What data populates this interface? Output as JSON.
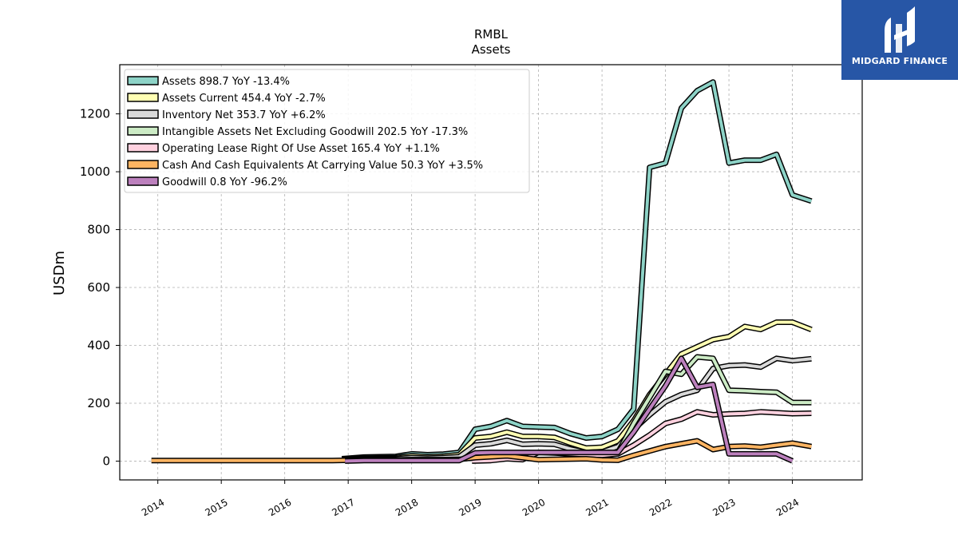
{
  "brand": {
    "name": "MIDGARD FINANCE",
    "bg_color": "#2756a6"
  },
  "chart_data": {
    "type": "line",
    "title": "RMBL",
    "subtitle": "Assets",
    "ylabel": "USDm",
    "xlabel": "",
    "xlim": [
      2013.4,
      2025.1
    ],
    "ylim": [
      -65,
      1370
    ],
    "x_ticks": [
      2014,
      2015,
      2016,
      2017,
      2018,
      2019,
      2020,
      2021,
      2022,
      2023,
      2024
    ],
    "y_ticks": [
      0,
      200,
      400,
      600,
      800,
      1000,
      1200
    ],
    "grid": true,
    "legend_position": "top-left",
    "series": [
      {
        "name": "Assets  898.7 YoY -13.4%",
        "color": "#8dd3c7",
        "x": [
          2016.9,
          2017.25,
          2017.5,
          2017.75,
          2018.0,
          2018.25,
          2018.5,
          2018.75,
          2019.0,
          2019.25,
          2019.5,
          2019.75,
          2020.0,
          2020.25,
          2020.5,
          2020.75,
          2021.0,
          2021.25,
          2021.5,
          2021.75,
          2022.0,
          2022.25,
          2022.5,
          2022.75,
          2023.0,
          2023.25,
          2023.5,
          2023.75,
          2024.0,
          2024.3
        ],
        "y": [
          8,
          14,
          15,
          16,
          25,
          22,
          24,
          30,
          110,
          120,
          140,
          120,
          118,
          116,
          95,
          80,
          85,
          110,
          180,
          1015,
          1030,
          1220,
          1280,
          1310,
          1030,
          1040,
          1040,
          1060,
          920,
          898.7
        ]
      },
      {
        "name": "Assets Current  454.4 YoY -2.7%",
        "color": "#ffffb3",
        "x": [
          2016.9,
          2017.25,
          2017.5,
          2017.75,
          2018.0,
          2018.25,
          2018.5,
          2018.75,
          2019.0,
          2019.25,
          2019.5,
          2019.75,
          2020.0,
          2020.25,
          2020.5,
          2020.75,
          2021.0,
          2021.25,
          2021.5,
          2021.75,
          2022.0,
          2022.25,
          2022.5,
          2022.75,
          2023.0,
          2023.25,
          2023.5,
          2023.75,
          2024.0,
          2024.3
        ],
        "y": [
          6,
          10,
          11,
          12,
          18,
          15,
          17,
          22,
          80,
          85,
          100,
          85,
          85,
          82,
          62,
          45,
          48,
          70,
          140,
          230,
          300,
          370,
          395,
          420,
          430,
          465,
          455,
          480,
          480,
          454.4
        ]
      },
      {
        "name": "Inventory Net  353.7 YoY +6.2%",
        "color": "#d9d9d9",
        "x": [
          2016.9,
          2017.25,
          2017.5,
          2017.75,
          2018.0,
          2018.25,
          2018.5,
          2018.75,
          2019.0,
          2019.25,
          2019.5,
          2019.75,
          2020.0,
          2020.25,
          2020.5,
          2020.75,
          2021.0,
          2021.25,
          2021.5,
          2021.75,
          2022.0,
          2022.25,
          2022.5,
          2022.75,
          2023.0,
          2023.25,
          2023.5,
          2023.75,
          2024.0,
          2024.3
        ],
        "y": [
          4,
          7,
          8,
          8,
          12,
          10,
          12,
          15,
          55,
          60,
          72,
          58,
          60,
          58,
          42,
          30,
          32,
          50,
          110,
          160,
          205,
          230,
          245,
          320,
          330,
          332,
          325,
          355,
          347,
          353.7
        ]
      },
      {
        "name": "Intangible Assets Net Excluding Goodwill  202.5 YoY -17.3%",
        "color": "#ccebc5",
        "x": [
          2021.0,
          2021.25,
          2021.5,
          2021.75,
          2022.0,
          2022.25,
          2022.5,
          2022.75,
          2023.0,
          2023.25,
          2023.5,
          2023.75,
          2024.0,
          2024.3
        ],
        "y": [
          10,
          30,
          130,
          220,
          310,
          300,
          360,
          355,
          245,
          243,
          240,
          238,
          202.5,
          202.5
        ]
      },
      {
        "name": "Operating Lease Right Of Use Asset  165.4 YoY +1.1%",
        "color": "#ffd1df",
        "x": [
          2018.95,
          2019.25,
          2019.5,
          2019.75,
          2020.0,
          2020.25,
          2020.5,
          2020.75,
          2021.0,
          2021.25,
          2021.5,
          2021.75,
          2022.0,
          2022.25,
          2022.5,
          2022.75,
          2023.0,
          2023.25,
          2023.5,
          2023.75,
          2024.0,
          2024.3
        ],
        "y": [
          0,
          2,
          8,
          5,
          30,
          28,
          25,
          22,
          20,
          25,
          55,
          90,
          130,
          145,
          170,
          160,
          163,
          165,
          170,
          167,
          164,
          165.4
        ]
      },
      {
        "name": "Cash And Cash Equivalents At Carrying Value  50.3 YoY +3.5%",
        "color": "#fdb462",
        "x": [
          2013.9,
          2014.25,
          2014.5,
          2014.75,
          2015.0,
          2015.25,
          2015.5,
          2015.75,
          2016.0,
          2016.25,
          2016.5,
          2016.75,
          2017.0,
          2017.25,
          2017.5,
          2017.75,
          2018.0,
          2018.25,
          2018.5,
          2018.75,
          2019.0,
          2019.25,
          2019.5,
          2019.75,
          2020.0,
          2020.25,
          2020.5,
          2020.75,
          2021.0,
          2021.25,
          2021.5,
          2021.75,
          2022.0,
          2022.25,
          2022.5,
          2022.75,
          2023.0,
          2023.25,
          2023.5,
          2023.75,
          2024.0,
          2024.3
        ],
        "y": [
          2,
          2,
          2,
          2,
          2,
          2,
          2,
          2,
          2,
          2,
          2,
          2,
          3,
          4,
          4,
          4,
          5,
          5,
          5,
          6,
          12,
          15,
          18,
          12,
          5,
          6,
          7,
          8,
          4,
          3,
          20,
          35,
          50,
          60,
          70,
          40,
          50,
          52,
          48,
          55,
          62,
          50.3
        ]
      },
      {
        "name": "Goodwill  0.8 YoY -96.2%",
        "color": "#bc80bd",
        "x": [
          2016.95,
          2017.25,
          2017.5,
          2017.75,
          2018.0,
          2018.25,
          2018.5,
          2018.75,
          2019.0,
          2019.25,
          2019.5,
          2019.75,
          2020.0,
          2020.25,
          2020.5,
          2020.75,
          2021.0,
          2021.25,
          2021.5,
          2021.75,
          2022.0,
          2022.25,
          2022.5,
          2022.75,
          2023.0,
          2023.25,
          2023.5,
          2023.75,
          2024.0
        ],
        "y": [
          0,
          2,
          2,
          2,
          2,
          2,
          2,
          2,
          28,
          30,
          30,
          30,
          30,
          30,
          30,
          30,
          30,
          30,
          100,
          180,
          260,
          355,
          255,
          265,
          25,
          25,
          25,
          25,
          0.8
        ]
      }
    ]
  }
}
